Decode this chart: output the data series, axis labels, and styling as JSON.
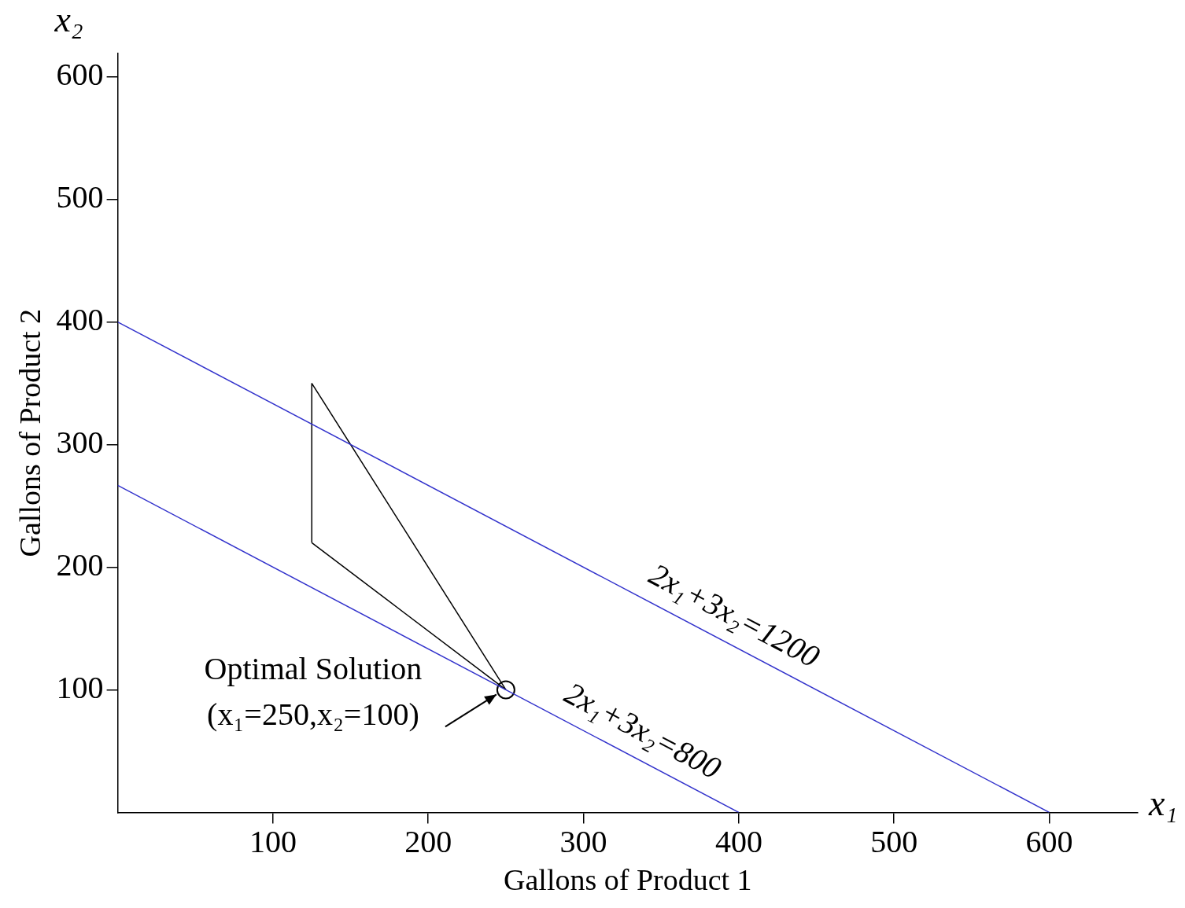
{
  "chart_data": {
    "type": "line",
    "xlabel": "Gallons of Product 1",
    "ylabel": "Gallons of Product 2",
    "xlim": [
      0,
      657
    ],
    "ylim": [
      0,
      619
    ],
    "xticks": [
      100,
      200,
      300,
      400,
      500,
      600
    ],
    "yticks": [
      100,
      200,
      300,
      400,
      500,
      600
    ],
    "grid": false,
    "legend": false,
    "marker": "none",
    "line_style": "solid",
    "series": [
      {
        "type": "line",
        "color": "#3333cc",
        "x": [
          0,
          600
        ],
        "values": [
          400,
          0
        ]
      },
      {
        "type": "line",
        "color": "#3333cc",
        "x": [
          0,
          400
        ],
        "values": [
          266.7,
          0
        ]
      },
      {
        "type": "line",
        "color": "#000000",
        "x": [
          125,
          125
        ],
        "values": [
          220,
          350
        ]
      },
      {
        "type": "line",
        "color": "#000000",
        "x": [
          125,
          250
        ],
        "values": [
          220,
          100
        ]
      },
      {
        "type": "line",
        "color": "#000000",
        "x": [
          125,
          250
        ],
        "values": [
          350,
          100
        ]
      },
      {
        "type": "scatter",
        "color": "#000000",
        "marker": "circle",
        "x": [
          250
        ],
        "values": [
          100
        ]
      }
    ],
    "annotations": [
      "x₂",
      "x₁",
      {
        "text": "2x₁+3x₂=1200",
        "x": 389,
        "y": 141
      },
      {
        "text": "2x₁+3x₂=800",
        "x": 330,
        "y": 47
      },
      {
        "text": "Optimal Solution\n(x₁=250,x₂=100)",
        "x": 250,
        "y": 100
      }
    ]
  }
}
